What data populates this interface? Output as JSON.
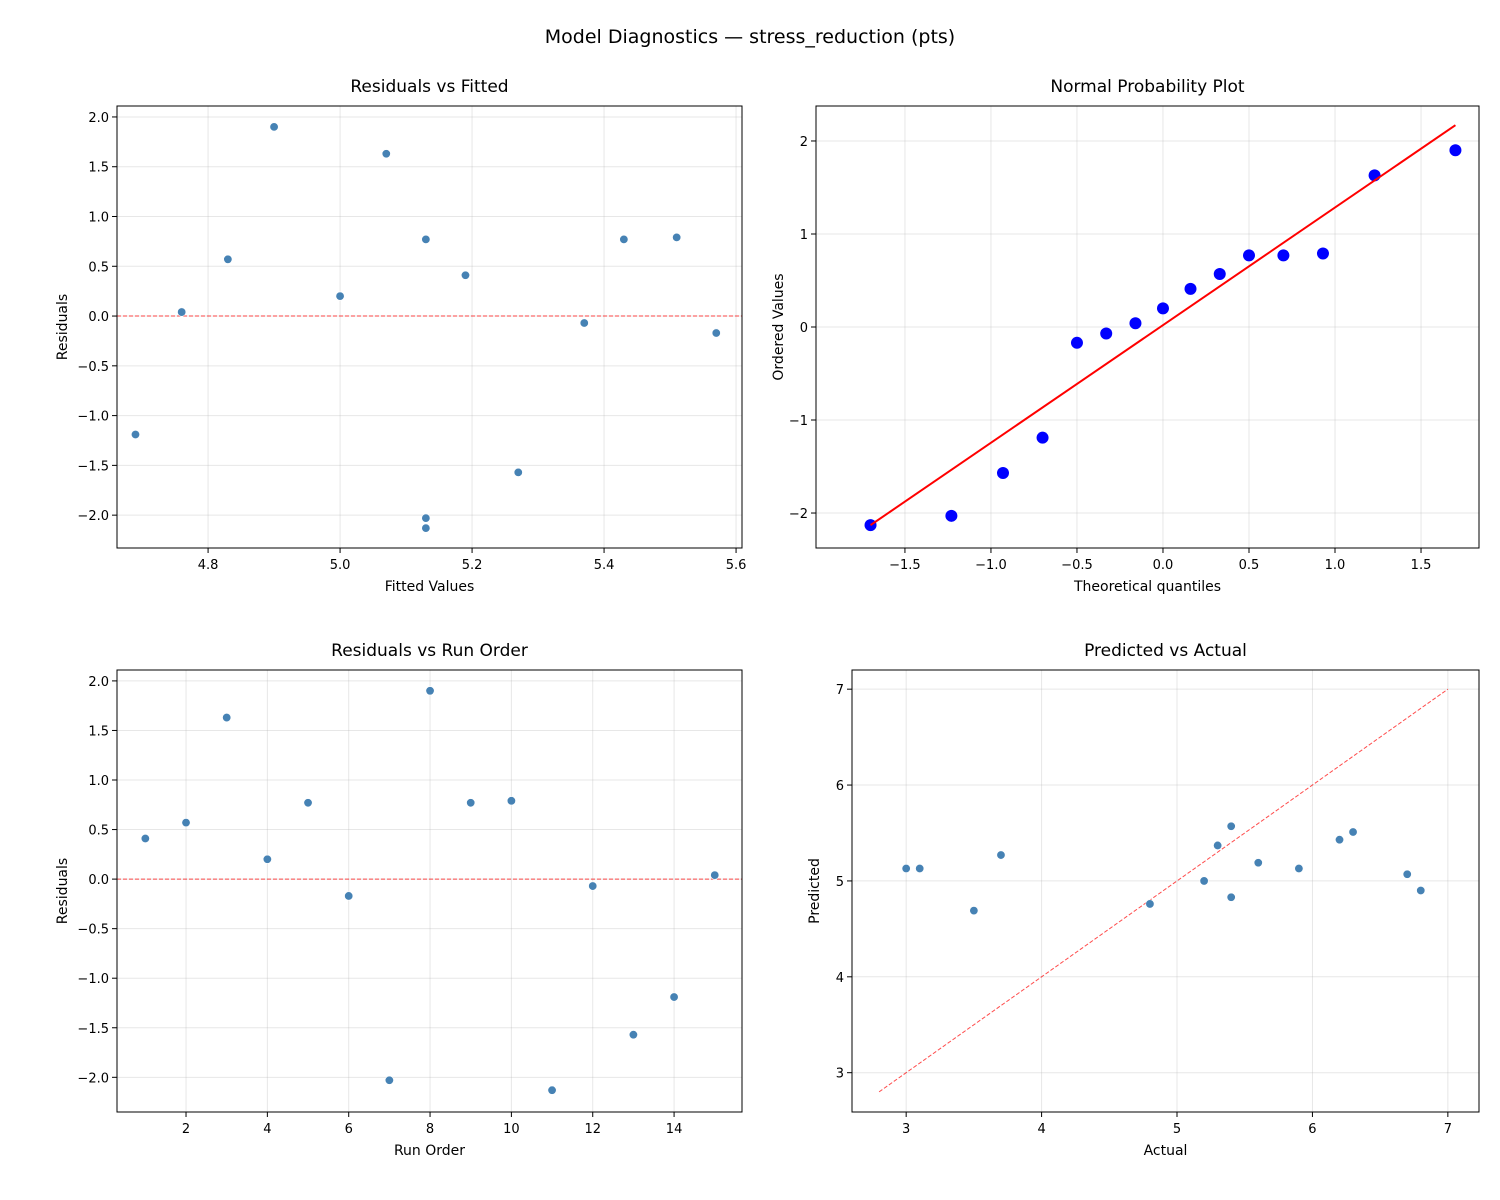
{
  "title": "Model Diagnostics — stress_reduction (pts)",
  "chart_data": [
    {
      "type": "scatter",
      "title": "Residuals vs Fitted",
      "xlabel": "Fitted Values",
      "ylabel": "Residuals",
      "xlim": [
        4.662,
        5.609
      ],
      "ylim": [
        -2.33,
        2.11
      ],
      "xticks": [
        4.8,
        5.0,
        5.2,
        5.4,
        5.6
      ],
      "xticklabels": [
        "4.8",
        "5.0",
        "5.2",
        "5.4",
        "5.6"
      ],
      "yticks": [
        -2.0,
        -1.5,
        -1.0,
        -0.5,
        0.0,
        0.5,
        1.0,
        1.5,
        2.0
      ],
      "yticklabels": [
        "−2.0",
        "−1.5",
        "−1.0",
        "−0.5",
        "0.0",
        "0.5",
        "1.0",
        "1.5",
        "2.0"
      ],
      "x": [
        5.19,
        4.83,
        5.07,
        5.0,
        5.13,
        5.57,
        5.13,
        4.9,
        5.43,
        5.51,
        5.13,
        5.37,
        5.27,
        4.69,
        4.76
      ],
      "y": [
        0.41,
        0.57,
        1.63,
        0.2,
        0.77,
        -0.17,
        -2.03,
        1.9,
        0.77,
        0.79,
        -2.13,
        -0.07,
        -1.57,
        -1.19,
        0.04
      ],
      "reference_line": {
        "type": "horizontal",
        "y": 0,
        "style": "dashed",
        "color": "#ff0000"
      },
      "marker_color": "#4682b4",
      "grid": true
    },
    {
      "type": "scatter",
      "title": "Normal Probability Plot",
      "xlabel": "Theoretical quantiles",
      "ylabel": "Ordered Values",
      "xlim": [
        -2.017,
        1.837
      ],
      "ylim": [
        -2.376,
        2.376
      ],
      "xticks": [
        -1.5,
        -1.0,
        -0.5,
        0.0,
        0.5,
        1.0,
        1.5
      ],
      "xticklabels": [
        "−1.5",
        "−1.0",
        "−0.5",
        "0.0",
        "0.5",
        "1.0",
        "1.5"
      ],
      "yticks": [
        -2,
        -1,
        0,
        1,
        2
      ],
      "yticklabels": [
        "−2",
        "−1",
        "0",
        "1",
        "2"
      ],
      "x": [
        -1.7,
        -1.23,
        -0.93,
        -0.7,
        -0.5,
        -0.33,
        -0.16,
        0.0,
        0.16,
        0.33,
        0.5,
        0.7,
        0.93,
        1.23,
        1.7
      ],
      "y": [
        -2.13,
        -2.03,
        -1.57,
        -1.19,
        -0.17,
        -0.07,
        0.04,
        0.2,
        0.41,
        0.57,
        0.77,
        0.77,
        0.79,
        1.63,
        1.9
      ],
      "fit_line": {
        "x": [
          -1.7,
          1.7
        ],
        "y": [
          -2.13,
          2.17
        ],
        "color": "#ff0000"
      },
      "marker_color": "#0000ff",
      "grid": true
    },
    {
      "type": "scatter",
      "title": "Residuals vs Run Order",
      "xlabel": "Run Order",
      "ylabel": "Residuals",
      "xlim": [
        0.303,
        15.67
      ],
      "ylim": [
        -2.35,
        2.11
      ],
      "xticks": [
        2,
        4,
        6,
        8,
        10,
        12,
        14
      ],
      "xticklabels": [
        "2",
        "4",
        "6",
        "8",
        "10",
        "12",
        "14"
      ],
      "yticks": [
        -2.0,
        -1.5,
        -1.0,
        -0.5,
        0.0,
        0.5,
        1.0,
        1.5,
        2.0
      ],
      "yticklabels": [
        "−2.0",
        "−1.5",
        "−1.0",
        "−0.5",
        "0.0",
        "0.5",
        "1.0",
        "1.5",
        "2.0"
      ],
      "x": [
        1,
        2,
        3,
        4,
        5,
        6,
        7,
        8,
        9,
        10,
        11,
        12,
        13,
        14,
        15
      ],
      "y": [
        0.41,
        0.57,
        1.63,
        0.2,
        0.77,
        -0.17,
        -2.03,
        1.9,
        0.77,
        0.79,
        -2.13,
        -0.07,
        -1.57,
        -1.19,
        0.04
      ],
      "reference_line": {
        "type": "horizontal",
        "y": 0,
        "style": "dashed",
        "color": "#ff0000"
      },
      "marker_color": "#4682b4",
      "grid": true
    },
    {
      "type": "scatter",
      "title": "Predicted vs Actual",
      "xlabel": "Actual",
      "ylabel": "Predicted",
      "xlim": [
        2.6,
        7.23
      ],
      "ylim": [
        2.59,
        7.2
      ],
      "xticks": [
        3,
        4,
        5,
        6,
        7
      ],
      "xticklabels": [
        "3",
        "4",
        "5",
        "6",
        "7"
      ],
      "yticks": [
        3,
        4,
        5,
        6,
        7
      ],
      "yticklabels": [
        "3",
        "4",
        "5",
        "6",
        "7"
      ],
      "x": [
        5.6,
        5.4,
        6.7,
        5.2,
        5.9,
        5.4,
        3.1,
        6.8,
        6.2,
        6.3,
        3.0,
        5.3,
        3.7,
        3.5,
        4.8
      ],
      "y": [
        5.19,
        4.83,
        5.07,
        5.0,
        5.13,
        5.57,
        5.13,
        4.9,
        5.43,
        5.51,
        5.13,
        5.37,
        5.27,
        4.69,
        4.76
      ],
      "reference_line": {
        "type": "diagonal",
        "x": [
          2.8,
          7.0
        ],
        "y": [
          2.8,
          7.0
        ],
        "style": "dashed",
        "color": "#ff0000"
      },
      "marker_color": "#4682b4",
      "grid": true
    }
  ]
}
